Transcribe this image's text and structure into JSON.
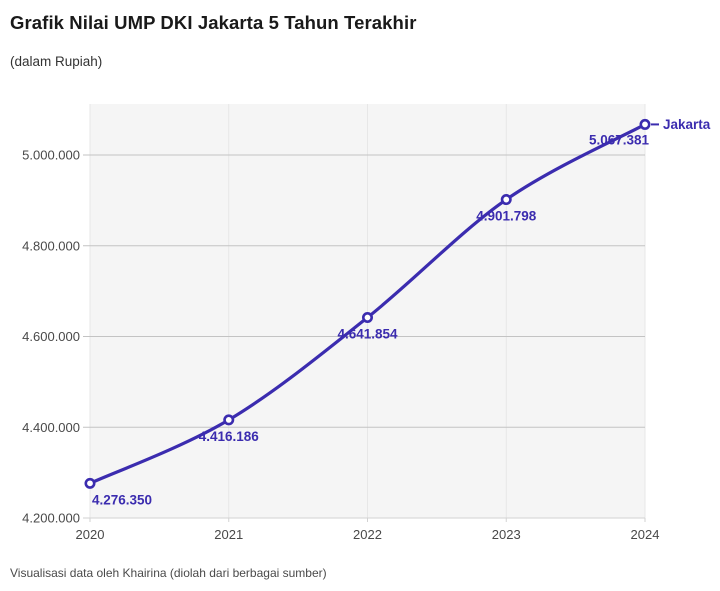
{
  "header": {
    "title": "Grafik Nilai UMP DKI Jakarta 5 Tahun Terakhir",
    "subtitle": "(dalam Rupiah)"
  },
  "footer": {
    "credit": "Visualisasi data oleh Khairina (diolah dari berbagai sumber)"
  },
  "chart_data": {
    "type": "line",
    "title": "Grafik Nilai UMP DKI Jakarta 5 Tahun Terakhir",
    "subtitle": "(dalam Rupiah)",
    "x": [
      "2020",
      "2021",
      "2022",
      "2023",
      "2024"
    ],
    "series": [
      {
        "name": "Jakarta",
        "values": [
          4276350,
          4416186,
          4641854,
          4901798,
          5067381
        ],
        "point_labels": [
          "4.276.350",
          "4.416.186",
          "4.641.854",
          "4.901.798",
          "5.067.381"
        ]
      }
    ],
    "y_ticks": [
      4200000,
      4400000,
      4600000,
      4800000,
      5000000
    ],
    "y_tick_labels": [
      "4.200.000",
      "4.400.000",
      "4.600.000",
      "4.800.000",
      "5.000.000"
    ],
    "ylim": [
      4200000,
      5113000
    ],
    "xlabel": "",
    "ylabel": "",
    "grid": true,
    "legend_position": "end-of-line",
    "colors": {
      "line": "#3b2caf",
      "plot_bg": "#f5f5f5",
      "grid_h": "#c3c3c3",
      "grid_v": "#e7e7e7",
      "axis": "#d2d2d2",
      "tick_label": "#494949",
      "title": "#1a1a1a",
      "subtitle": "#333333",
      "footer": "#4a4a4a",
      "marker_fill": "#ffffff"
    }
  }
}
